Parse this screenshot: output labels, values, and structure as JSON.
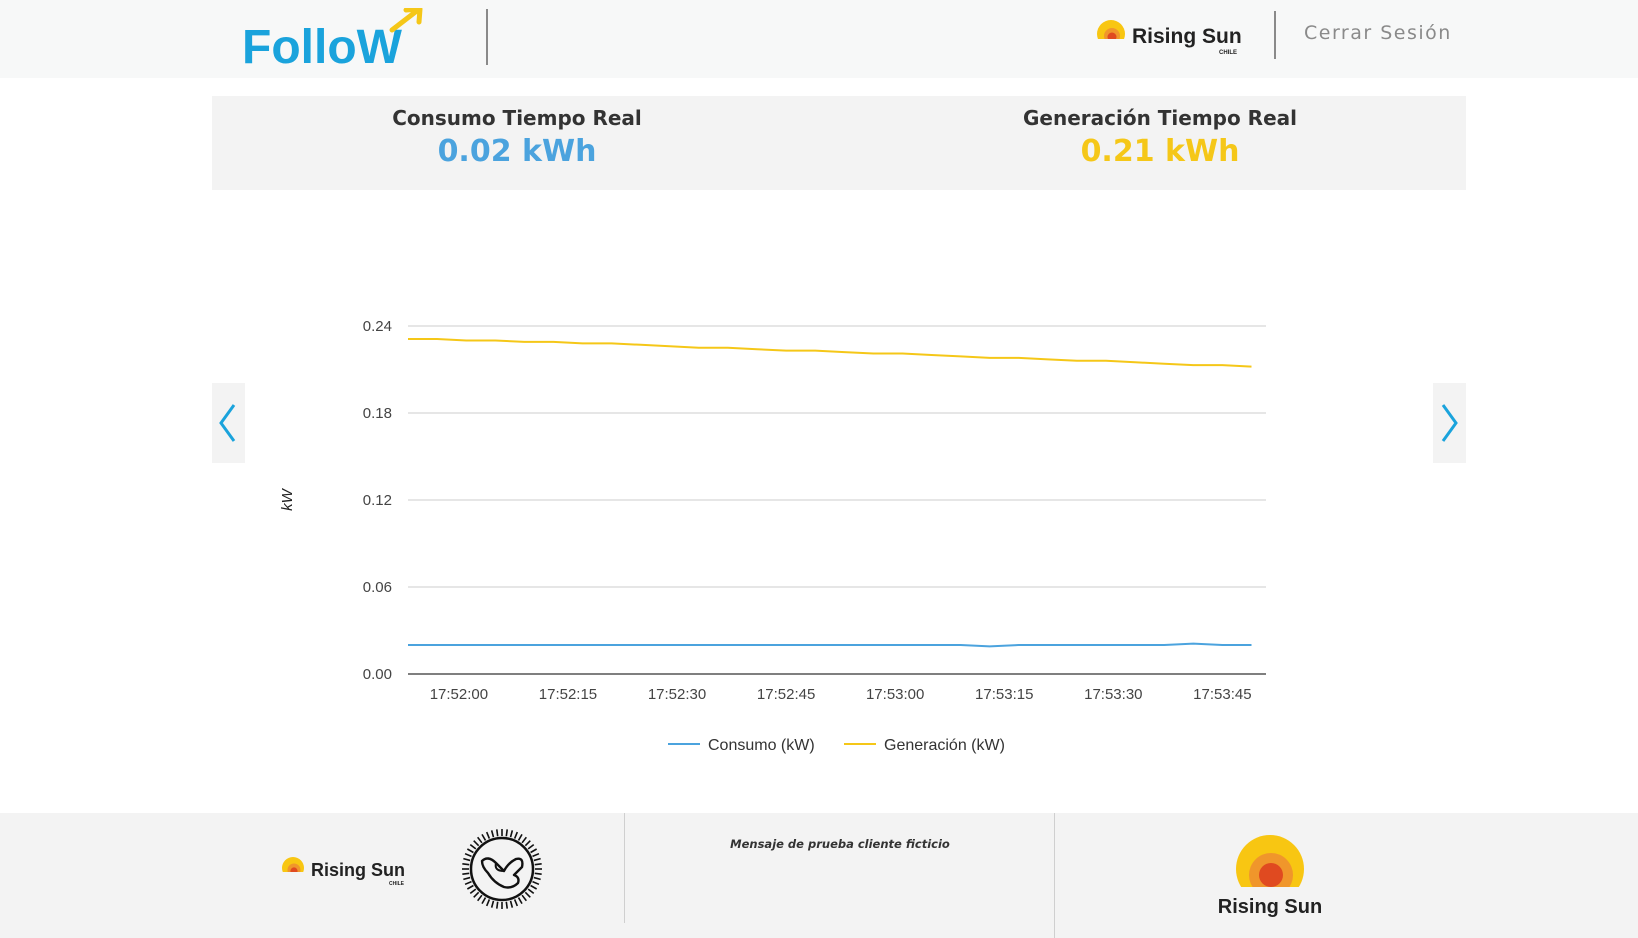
{
  "header": {
    "logo_text": "FolloW",
    "brand_logo_text": "Rising Sun",
    "brand_logo_sub": "CHILE",
    "logout_label": "Cerrar Sesión"
  },
  "stats": {
    "consumo": {
      "label": "Consumo Tiempo Real",
      "value": "0.02 kWh",
      "color": "#4ba3de"
    },
    "generacion": {
      "label": "Generación Tiempo Real",
      "value": "0.21 kWh",
      "color": "#f5c718"
    }
  },
  "nav": {
    "prev_icon": "chevron-left-icon",
    "next_icon": "chevron-right-icon"
  },
  "chart_data": {
    "type": "line",
    "title": "",
    "xlabel": "",
    "ylabel": "kW",
    "ylim": [
      0,
      0.24
    ],
    "yticks": [
      0,
      0.06,
      0.12,
      0.18,
      0.24
    ],
    "ytick_labels": [
      "0.00",
      "0.06",
      "0.12",
      "0.18",
      "0.24"
    ],
    "x_range": [
      "17:51:53",
      "17:53:51"
    ],
    "xtick_labels": [
      "17:52:00",
      "17:52:15",
      "17:52:30",
      "17:52:45",
      "17:53:00",
      "17:53:15",
      "17:53:30",
      "17:53:45"
    ],
    "grid": true,
    "legend_position": "bottom",
    "x": [
      "17:51:53",
      "17:51:57",
      "17:52:01",
      "17:52:05",
      "17:52:09",
      "17:52:13",
      "17:52:17",
      "17:52:21",
      "17:52:25",
      "17:52:29",
      "17:52:33",
      "17:52:37",
      "17:52:41",
      "17:52:45",
      "17:52:49",
      "17:52:53",
      "17:52:57",
      "17:53:01",
      "17:53:05",
      "17:53:09",
      "17:53:13",
      "17:53:17",
      "17:53:21",
      "17:53:25",
      "17:53:29",
      "17:53:33",
      "17:53:37",
      "17:53:41",
      "17:53:45",
      "17:53:49"
    ],
    "series": [
      {
        "name": "Consumo (kW)",
        "color": "#4ba3de",
        "values": [
          0.02,
          0.02,
          0.02,
          0.02,
          0.02,
          0.02,
          0.02,
          0.02,
          0.02,
          0.02,
          0.02,
          0.02,
          0.02,
          0.02,
          0.02,
          0.02,
          0.02,
          0.02,
          0.02,
          0.02,
          0.019,
          0.02,
          0.02,
          0.02,
          0.02,
          0.02,
          0.02,
          0.021,
          0.02,
          0.02
        ]
      },
      {
        "name": "Generación (kW)",
        "color": "#f5c718",
        "values": [
          0.231,
          0.231,
          0.23,
          0.23,
          0.229,
          0.229,
          0.228,
          0.228,
          0.227,
          0.226,
          0.225,
          0.225,
          0.224,
          0.223,
          0.223,
          0.222,
          0.221,
          0.221,
          0.22,
          0.219,
          0.218,
          0.218,
          0.217,
          0.216,
          0.216,
          0.215,
          0.214,
          0.213,
          0.213,
          0.212
        ]
      }
    ]
  },
  "footer": {
    "brand_logo_text": "Rising Sun",
    "brand_logo_sub": "CHILE",
    "hand_icon": "shaka-hand-icon",
    "message": "Mensaje de prueba cliente ficticio",
    "big_logo_text": "Rising Sun"
  }
}
